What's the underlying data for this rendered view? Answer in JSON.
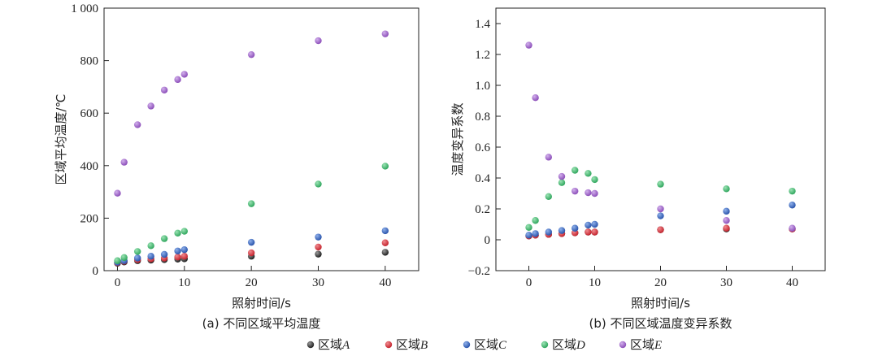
{
  "chart_data": [
    {
      "type": "scatter",
      "title": "",
      "caption": "(a) 不同区域平均温度",
      "xlabel": "照射时间/s",
      "ylabel": "区域平均温度/℃",
      "xlim": [
        -2,
        45
      ],
      "ylim": [
        0,
        1000
      ],
      "xticks": [
        0,
        10,
        20,
        30,
        40
      ],
      "yticks": [
        0,
        200,
        400,
        600,
        800,
        1000
      ],
      "ytick_labels": [
        "0",
        "200",
        "400",
        "600",
        "800",
        "1 000"
      ],
      "x": [
        0,
        1,
        3,
        5,
        7,
        9,
        10,
        20,
        30,
        40
      ],
      "series": [
        {
          "name": "区域A",
          "values": [
            28,
            33,
            38,
            40,
            42,
            44,
            45,
            55,
            63,
            70
          ]
        },
        {
          "name": "区域B",
          "values": [
            30,
            36,
            42,
            45,
            48,
            52,
            55,
            68,
            90,
            106
          ]
        },
        {
          "name": "区域C",
          "values": [
            32,
            38,
            48,
            55,
            62,
            75,
            80,
            108,
            128,
            152
          ]
        },
        {
          "name": "区域D",
          "values": [
            38,
            50,
            73,
            95,
            122,
            143,
            150,
            255,
            330,
            398
          ]
        },
        {
          "name": "区域E",
          "values": [
            295,
            413,
            556,
            627,
            688,
            728,
            748,
            823,
            876,
            902
          ]
        }
      ]
    },
    {
      "type": "scatter",
      "title": "",
      "caption": "(b) 不同区域温度变异系数",
      "xlabel": "照射时间/s",
      "ylabel": "温度变异系数",
      "xlim": [
        -5,
        45
      ],
      "ylim": [
        -0.2,
        1.5
      ],
      "xticks": [
        0,
        10,
        20,
        30,
        40
      ],
      "yticks": [
        -0.2,
        0,
        0.2,
        0.4,
        0.6,
        0.8,
        1.0,
        1.2,
        1.4
      ],
      "ytick_labels": [
        "−0.2",
        "0",
        "0.2",
        "0.4",
        "0.6",
        "0.8",
        "1.0",
        "1.2",
        "1.4"
      ],
      "x": [
        0,
        1,
        3,
        5,
        7,
        9,
        10,
        20,
        30,
        40
      ],
      "series": [
        {
          "name": "区域A",
          "values": [
            0.025,
            0.03,
            0.035,
            0.04,
            0.045,
            0.05,
            0.05,
            0.065,
            0.07,
            0.07
          ]
        },
        {
          "name": "区域B",
          "values": [
            0.025,
            0.03,
            0.035,
            0.04,
            0.045,
            0.05,
            0.05,
            0.065,
            0.075,
            0.07
          ]
        },
        {
          "name": "区域C",
          "values": [
            0.03,
            0.04,
            0.05,
            0.06,
            0.075,
            0.095,
            0.1,
            0.155,
            0.185,
            0.225
          ]
        },
        {
          "name": "区域D",
          "values": [
            0.08,
            0.125,
            0.28,
            0.37,
            0.45,
            0.43,
            0.39,
            0.36,
            0.33,
            0.315
          ]
        },
        {
          "name": "区域E",
          "values": [
            1.26,
            0.92,
            0.535,
            0.41,
            0.315,
            0.305,
            0.3,
            0.2,
            0.125,
            0.075
          ]
        }
      ]
    }
  ],
  "legend": [
    {
      "prefix": "区域",
      "letter": "A",
      "color": "#2b2b2b"
    },
    {
      "prefix": "区域",
      "letter": "B",
      "color": "#d2333c"
    },
    {
      "prefix": "区域",
      "letter": "C",
      "color": "#3560b8"
    },
    {
      "prefix": "区域",
      "letter": "D",
      "color": "#3cb46a"
    },
    {
      "prefix": "区域",
      "letter": "E",
      "color": "#9a5cc6"
    }
  ]
}
